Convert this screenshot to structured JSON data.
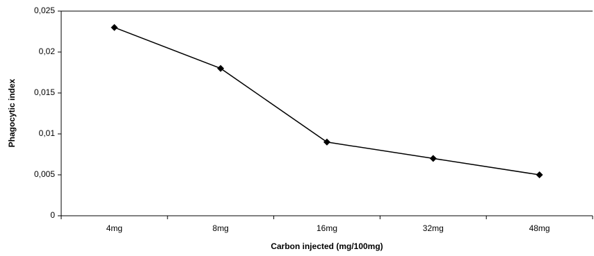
{
  "chart_data": {
    "type": "line",
    "x_label": "Carbon injected (mg/100mg)",
    "y_label": "Phagocytic index",
    "categories": [
      "4mg",
      "8mg",
      "16mg",
      "32mg",
      "48mg"
    ],
    "series": [
      {
        "name": "Phagocytic index",
        "color": "#000000",
        "values": [
          0.023,
          0.018,
          0.009,
          0.007,
          0.005
        ]
      }
    ],
    "ylim": [
      0,
      0.025
    ],
    "yticks": [
      0,
      {
        "value": 0.005,
        "label": "0,005"
      },
      {
        "value": 0.01,
        "label": "0,01"
      },
      {
        "value": 0.015,
        "label": "0,015"
      },
      {
        "value": 0.02,
        "label": "0,02"
      },
      {
        "value": 0.025,
        "label": "0,025"
      }
    ],
    "grid": false
  }
}
